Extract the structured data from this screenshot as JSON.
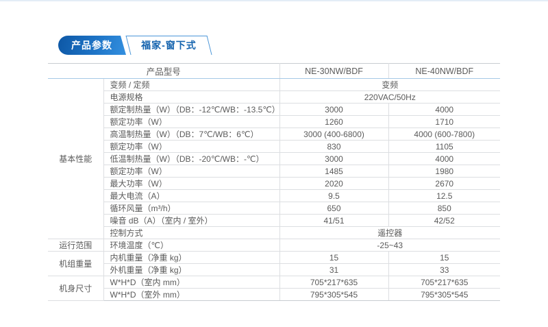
{
  "tabs": {
    "primary_label": "产品参数",
    "secondary_label": "福家-窗下式",
    "accent_dark": "#0d57a5",
    "accent_light": "#3390e0",
    "secondary_text_color": "#1463ae"
  },
  "table": {
    "header": {
      "model_col_label": "产品型号",
      "models": [
        "NE-30NW/BDF",
        "NE-40NW/BDF"
      ]
    },
    "groups": [
      {
        "category": "基本性能",
        "rows": [
          {
            "param": "变频 / 定频",
            "span": "变频"
          },
          {
            "param": "电源规格",
            "span": "220VAC/50Hz"
          },
          {
            "param": "额定制热量（W）（DB：-12℃/WB：-13.5℃）",
            "values": [
              "3000",
              "4000"
            ]
          },
          {
            "param": "额定功率（W）",
            "values": [
              "1260",
              "1710"
            ]
          },
          {
            "param": "高温制热量（W）（DB：7℃/WB：6℃）",
            "values": [
              "3000 (400-6800)",
              "4000 (600-7800)"
            ]
          },
          {
            "param": "额定功率（W）",
            "values": [
              "830",
              "1105"
            ]
          },
          {
            "param": "低温制热量（W）（DB：-20℃/WB：-℃）",
            "values": [
              "3000",
              "4000"
            ]
          },
          {
            "param": "额定功率（W）",
            "values": [
              "1485",
              "1980"
            ]
          },
          {
            "param": "最大功率（W）",
            "values": [
              "2020",
              "2670"
            ]
          },
          {
            "param": "最大电流（A）",
            "values": [
              "9.5",
              "12.5"
            ]
          },
          {
            "param": "循环风量（m³/h）",
            "values": [
              "650",
              "850"
            ]
          },
          {
            "param": "噪音 dB（A）（室内 / 室外）",
            "values": [
              "41/51",
              "42/52"
            ]
          },
          {
            "param": "控制方式",
            "span": "遥控器"
          }
        ]
      },
      {
        "category": "运行范围",
        "rows": [
          {
            "param": "环境温度（℃）",
            "span": "-25~43"
          }
        ]
      },
      {
        "category": "机组重量",
        "rows": [
          {
            "param": "内机重量（净重 kg）",
            "values": [
              "15",
              "15"
            ]
          },
          {
            "param": "外机重量（净重 kg）",
            "values": [
              "31",
              "33"
            ]
          }
        ]
      },
      {
        "category": "机身尺寸",
        "rows": [
          {
            "param": "W*H*D（室内 mm）",
            "values": [
              "705*217*635",
              "705*217*635"
            ]
          },
          {
            "param": "W*H*D（室外 mm）",
            "values": [
              "795*305*545",
              "795*305*545"
            ]
          }
        ]
      }
    ]
  }
}
